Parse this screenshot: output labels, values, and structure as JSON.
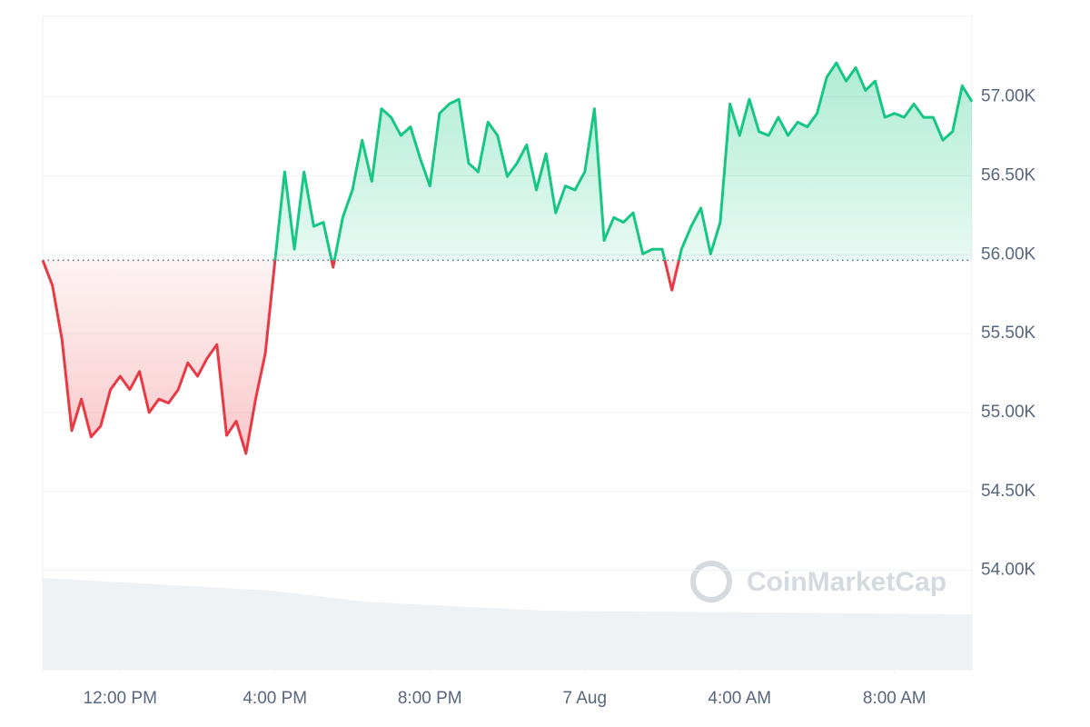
{
  "chart_data": {
    "type": "line",
    "watermark": "CoinMarketCap",
    "baseline": 55965,
    "colors": {
      "up": "#16c784",
      "down": "#ea3943"
    },
    "grid": true,
    "xlim": [
      10,
      34
    ],
    "xticks": [
      {
        "value": 12,
        "label": "12:00 PM"
      },
      {
        "value": 16,
        "label": "4:00 PM"
      },
      {
        "value": 20,
        "label": "8:00 PM"
      },
      {
        "value": 24,
        "label": "7 Aug"
      },
      {
        "value": 28,
        "label": "4:00 AM"
      },
      {
        "value": 32,
        "label": "8:00 AM"
      }
    ],
    "ylim": [
      53370,
      57510
    ],
    "yticks": [
      {
        "value": 54000,
        "label": "54.00K"
      },
      {
        "value": 54500,
        "label": "54.50K"
      },
      {
        "value": 55000,
        "label": "55.00K"
      },
      {
        "value": 55500,
        "label": "55.50K"
      },
      {
        "value": 56000,
        "label": "56.00K"
      },
      {
        "value": 56500,
        "label": "56.50K"
      },
      {
        "value": 57000,
        "label": "57.00K"
      }
    ],
    "x": [
      10,
      10.25,
      10.5,
      10.75,
      11,
      11.25,
      11.5,
      11.75,
      12,
      12.25,
      12.5,
      12.75,
      13,
      13.25,
      13.5,
      13.75,
      14,
      14.25,
      14.5,
      14.75,
      15,
      15.25,
      15.5,
      15.75,
      16,
      16.25,
      16.5,
      16.75,
      17,
      17.25,
      17.5,
      17.75,
      18,
      18.25,
      18.5,
      18.75,
      19,
      19.25,
      19.5,
      19.75,
      20,
      20.25,
      20.5,
      20.75,
      21,
      21.25,
      21.5,
      21.75,
      22,
      22.25,
      22.5,
      22.75,
      23,
      23.25,
      23.5,
      23.75,
      24,
      24.25,
      24.5,
      24.75,
      25,
      25.25,
      25.5,
      25.75,
      26,
      26.25,
      26.5,
      26.75,
      27,
      27.25,
      27.5,
      27.75,
      28,
      28.25,
      28.5,
      28.75,
      29,
      29.25,
      29.5,
      29.75,
      30,
      30.25,
      30.5,
      30.75,
      31,
      31.25,
      31.5,
      31.75,
      32,
      32.25,
      32.5,
      32.75,
      33,
      33.25,
      33.5,
      33.75,
      34
    ],
    "values": [
      55965,
      55805,
      55460,
      54885,
      55085,
      54845,
      54915,
      55145,
      55230,
      55145,
      55260,
      55000,
      55085,
      55060,
      55145,
      55315,
      55230,
      55345,
      55430,
      54855,
      54945,
      54740,
      55085,
      55375,
      55965,
      56525,
      56035,
      56525,
      56180,
      56205,
      55920,
      56235,
      56410,
      56725,
      56465,
      56925,
      56870,
      56755,
      56810,
      56610,
      56435,
      56895,
      56955,
      56985,
      56580,
      56525,
      56840,
      56755,
      56495,
      56580,
      56695,
      56410,
      56640,
      56265,
      56435,
      56410,
      56525,
      56925,
      56090,
      56235,
      56205,
      56265,
      56005,
      56035,
      56035,
      55775,
      56035,
      56180,
      56295,
      56005,
      56205,
      56955,
      56755,
      56985,
      56780,
      56755,
      56870,
      56755,
      56840,
      56810,
      56895,
      57125,
      57215,
      57100,
      57185,
      57040,
      57100,
      56870,
      56895,
      56870,
      56955,
      56870,
      56870,
      56725,
      56780,
      57070,
      56970
    ]
  }
}
